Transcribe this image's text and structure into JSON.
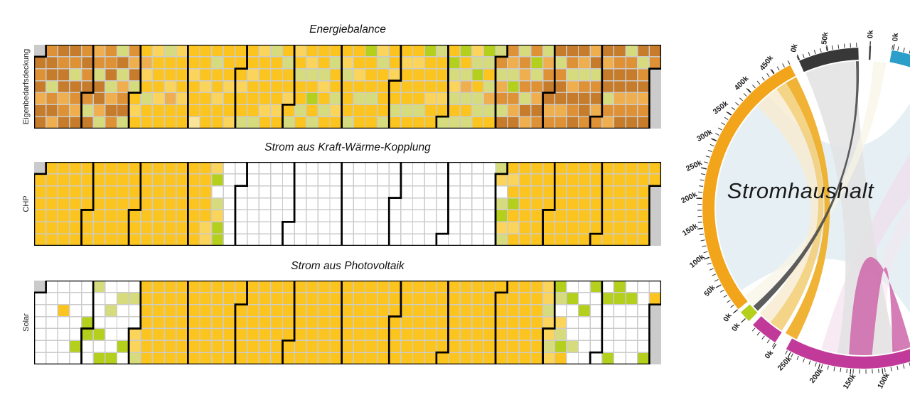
{
  "palette": {
    "w": "#ffffff",
    "a": "#fae49a",
    "b": "#fbd45c",
    "c": "#fcc41e",
    "d": "#d6dc7d",
    "e": "#b4cf1c",
    "f": "#f0af4e",
    "g": "#de9235",
    "h": "#c67c2b"
  },
  "calendar": {
    "start_offset": 1,
    "month_lengths": [
      31,
      28,
      31,
      30,
      31,
      30,
      31,
      31,
      30,
      31,
      30,
      31
    ]
  },
  "chart_data": [
    {
      "type": "heatmap",
      "title": "Energiebalance",
      "ylabel": "Eigenbedarfsdeckung",
      "months": [
        "hghfhhghhdghfhghhfghhgdhgfhghgh",
        "gdhfgdhhfdgghdfhgdhdfghdgfhd",
        "cbccfbcdccbcccbccdccbfccbcccbcc",
        "ccbcccacccbccccdccbcccccbccbcc",
        "cbccdccbcccdbccccbcdccccbccdccb",
        "cdbcdccdccbdcecdccdbcdccdccdbc",
        "cbdcccdccbcdccecccdccbdccccdccb",
        "ccdccbcccdccbcccdcecccbccdcccbc",
        "dcedbdcdecdfdcdbdecddcedcdfdcd",
        "gdfgdhgfdegfhdgfgdhfgedgfhgdfgh",
        "hfghdghhfghgdfhghhfdghhgfhdghf",
        "ghfhhdgfhghhfghdghhfghhdghfghhg"
      ]
    },
    {
      "type": "heatmap",
      "title": "Strom aus Kraft-Wärme-Kopplung",
      "ylabel": "CHP",
      "months": [
        "ccccccccccccccccccccccccccccccc",
        "cccccccccccccccccccccccccccc",
        "ccccccccccccccccccccccccccccccc",
        "ccccccccccccbbbewdbeewwwwwwwww",
        "wwwwwwwwwwwwwwwwwwwwwwwwwwwwwww",
        "wwwwwwwwwwwwwwwwwwwwwwwwwwwwww",
        "wwwwwwwwwwwwwwwwwwwwwwwwwwwwwww",
        "wwwwwwwwwwwwwwwwwwwwwwwwwwwwwww",
        "wwwwwwwwwwwwwwwwwwwwwwwwwwwwwd",
        "bwdebdcbcecbccccccccccccccccccc",
        "cccccccccccccccccccccccccccccc",
        "ccccccccccccccccccccccccccccccc"
      ]
    },
    {
      "type": "heatmap",
      "title": "Strom aus Photovoltaik",
      "ylabel": "Solar",
      "months": [
        "wwwwwwwwwwwwwwwcwwwwwwwwwewwwwe",
        "ewwdwwwewewwdwwwewdwwwewwdww",
        "bbdcccccccccccccccccccccccccccc",
        "cccccccccccccccccccccccccccccc",
        "ccccccccccccccccccccccccccccccc",
        "cccccccccccccccccccccccccccccc",
        "ccccccccccccccccccccccccccccccc",
        "ccccccccccccccccccccccccccccccc",
        "cccccccccccccccccccccccccccccc",
        "cccccccccccccccccccccccccccbbdb",
        "bdbedwbdecwewwwdwwwewwwwewwwww",
        "wwewwwweeewwwwwwewwwwwwwwwwwewc"
      ]
    },
    {
      "type": "chord",
      "title": "Stromhaushalt",
      "segments": [
        {
          "name": "orange-arc",
          "color": "#F2A41B",
          "start": 231,
          "end": 333,
          "tick_step": 2.125,
          "labels": [
            {
              "text": "0k",
              "angle": 231,
              "rot": -55
            },
            {
              "text": "50k",
              "angle": 241.6,
              "rot": -48
            },
            {
              "text": "100k",
              "angle": 252.2,
              "rot": -40
            },
            {
              "text": "150k",
              "angle": 262.8,
              "rot": -33
            },
            {
              "text": "200k",
              "angle": 273.4,
              "rot": -27
            },
            {
              "text": "250k",
              "angle": 284,
              "rot": -25
            },
            {
              "text": "300k",
              "angle": 294.6,
              "rot": -30
            },
            {
              "text": "350k",
              "angle": 305.2,
              "rot": -38
            },
            {
              "text": "400k",
              "angle": 315.8,
              "rot": -46
            },
            {
              "text": "450k",
              "angle": 326.4,
              "rot": -52
            }
          ]
        },
        {
          "name": "green-arc",
          "color": "#B4CF1C",
          "start": 225.3,
          "end": 229.6,
          "tick_step": 0,
          "labels": [
            {
              "text": "0k",
              "angle": 226.8,
              "rot": -54
            }
          ]
        },
        {
          "name": "magenta-arc-small",
          "color": "#C13A99",
          "start": 213.2,
          "end": 223.3,
          "tick_step": 2.2,
          "labels": [
            {
              "text": "0k",
              "angle": 212.6,
              "rot": -50
            }
          ]
        },
        {
          "name": "magenta-arc-large",
          "color": "#C13A99",
          "start": 150,
          "end": 208.6,
          "tick_step": 2.23,
          "labels": [
            {
              "text": "100k",
              "angle": 173.2,
              "rot": -62
            },
            {
              "text": "150k",
              "angle": 184.4,
              "rot": -57
            },
            {
              "text": "200k",
              "angle": 195.5,
              "rot": -52
            },
            {
              "text": "250k",
              "angle": 206.7,
              "rot": -48
            }
          ]
        },
        {
          "name": "black-arc",
          "color": "#383838",
          "start": 336.5,
          "end": 358.3,
          "tick_step": 2.12,
          "labels": [
            {
              "text": "0k",
              "angle": 336.8,
              "rot": -76
            },
            {
              "text": "50k",
              "angle": 347.4,
              "rot": -83
            }
          ]
        },
        {
          "name": "marker-line",
          "type": "line",
          "color": "#444444",
          "start": 2.5,
          "end": 2.5,
          "tick_step": 0,
          "labels": [
            {
              "text": "0k",
              "angle": 2.5,
              "rot": -88
            }
          ]
        },
        {
          "name": "blue-arc",
          "color": "#2B9FC9",
          "start": 10.3,
          "end": 32,
          "tick_step": 2.1,
          "labels": [
            {
              "text": "0k",
              "angle": 10.8,
              "rot": -86
            }
          ]
        }
      ],
      "ribbons": [
        {
          "name": "ribbon-pale-blue",
          "from": [
            236,
            320
          ],
          "to": [
            25,
            155
          ],
          "color": "#E5EFF3",
          "opacity": 0.95
        },
        {
          "name": "ribbon-pale-pink-1",
          "from": [
            186.5,
            196.5
          ],
          "to": [
            38,
            58
          ],
          "color": "#F2D9E9",
          "opacity": 0.55
        },
        {
          "name": "ribbon-pale-pink-2",
          "from": [
            169,
            176
          ],
          "to": [
            58,
            78
          ],
          "color": "#F5E3EF",
          "opacity": 0.5
        },
        {
          "name": "ribbon-gray",
          "from": [
            337,
            357
          ],
          "to": [
            167,
            190
          ],
          "color": "#E2E2E2",
          "opacity": 0.85
        },
        {
          "name": "ribbon-cream-thin",
          "from": [
            4,
            9
          ],
          "to": [
            228.5,
            233.5
          ],
          "color": "#F8F3E6",
          "opacity": 0.7
        },
        {
          "name": "ribbon-cream",
          "from": [
            314,
            324
          ],
          "to": [
            219,
            224.5
          ],
          "color": "#F7EBCE",
          "opacity": 0.8
        },
        {
          "name": "ribbon-light-gold",
          "from": [
            324,
            328.5
          ],
          "to": [
            213.5,
            219
          ],
          "color": "#F2CC72",
          "opacity": 0.85
        },
        {
          "name": "ribbon-pink-arch",
          "from": [
            176.5,
            185.5
          ],
          "to": [
            161,
            168.5
          ],
          "color": "#CE66A9",
          "opacity": 0.85,
          "arch": true,
          "controls": [
            [
              1210,
              230
            ],
            [
              1250,
              255
            ]
          ]
        },
        {
          "name": "ribbon-gold",
          "from": [
            328.5,
            333
          ],
          "to": [
            206.8,
            211.8
          ],
          "color": "#EFAD24",
          "opacity": 0.92
        },
        {
          "name": "ribbon-dark",
          "from": [
            357.2,
            358.3
          ],
          "to": [
            225.7,
            228.2
          ],
          "color": "#4A4A4A",
          "opacity": 0.9
        }
      ]
    }
  ]
}
